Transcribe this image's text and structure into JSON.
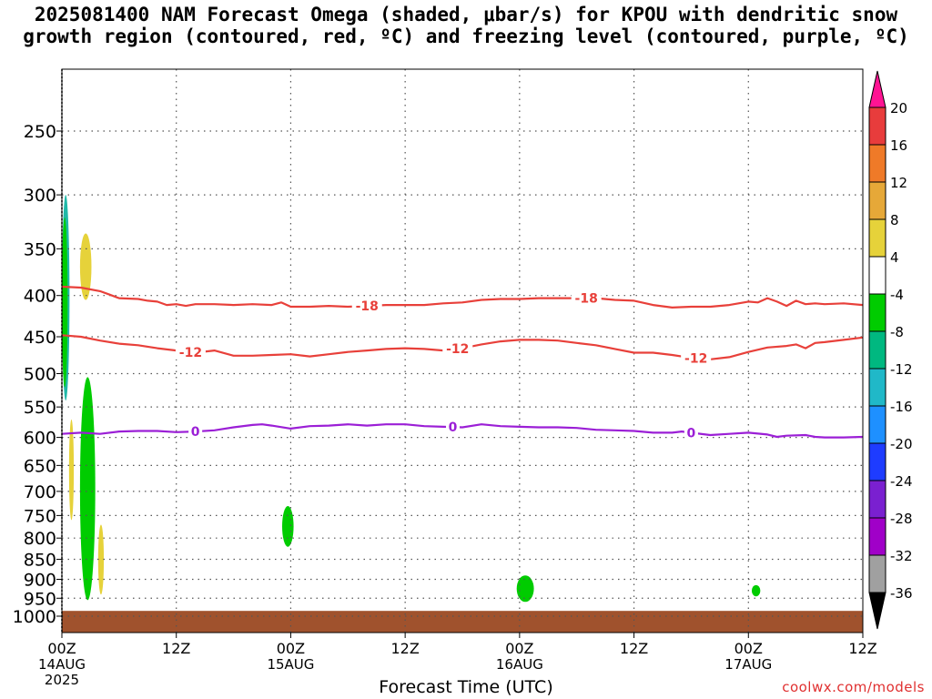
{
  "title": {
    "line1": "2025081400 NAM Forecast Omega (shaded, μbar/s) for KPOU with dendritic snow",
    "line2": "growth region (contoured, red, ºC) and freezing level (contoured, purple, ºC)"
  },
  "credit": "coolwx.com/models",
  "colors": {
    "red_contour": "#e8403a",
    "purple_contour": "#9b1fd6",
    "terrain": "#a0522d",
    "green": "#00cc00",
    "yellow": "#e6d23a",
    "teal": "#20b8a8"
  },
  "chart_data": {
    "type": "heatmap",
    "xlabel": "Forecast Time (UTC)",
    "ylabel": "",
    "x_range_hours": [
      0,
      84
    ],
    "y_scale": "log-pressure",
    "y_range_hPa": [
      200,
      1050
    ],
    "grid": true,
    "y_ticks": [
      250,
      300,
      350,
      400,
      450,
      500,
      550,
      600,
      650,
      700,
      750,
      800,
      850,
      900,
      950,
      1000
    ],
    "x_ticks": [
      {
        "hour": 0,
        "labels": [
          "00Z",
          "14AUG",
          "2025"
        ]
      },
      {
        "hour": 12,
        "labels": [
          "12Z"
        ]
      },
      {
        "hour": 24,
        "labels": [
          "00Z",
          "15AUG"
        ]
      },
      {
        "hour": 36,
        "labels": [
          "12Z"
        ]
      },
      {
        "hour": 48,
        "labels": [
          "00Z",
          "16AUG"
        ]
      },
      {
        "hour": 60,
        "labels": [
          "12Z"
        ]
      },
      {
        "hour": 72,
        "labels": [
          "00Z",
          "17AUG"
        ]
      },
      {
        "hour": 84,
        "labels": [
          "12Z"
        ]
      }
    ],
    "colorbar": {
      "levels": [
        20,
        16,
        12,
        8,
        4,
        -4,
        -8,
        -12,
        -16,
        -20,
        -24,
        -28,
        -32,
        -36
      ],
      "colors": [
        "#ff1493",
        "#e83c3c",
        "#ef7a28",
        "#e6a838",
        "#e6d23a",
        "#ffffff",
        "#00cc00",
        "#00b880",
        "#20b8c8",
        "#1e90ff",
        "#1e3cff",
        "#7a20d0",
        "#a000c8",
        "#a0a0a0",
        "#000000"
      ]
    },
    "contours": [
      {
        "label": "-18",
        "color": "#e8403a",
        "points": [
          [
            0,
            390
          ],
          [
            2,
            391
          ],
          [
            4,
            395
          ],
          [
            5,
            399
          ],
          [
            6,
            403
          ],
          [
            8,
            404
          ],
          [
            9,
            406
          ],
          [
            10,
            407
          ],
          [
            11,
            411
          ],
          [
            12,
            410
          ],
          [
            13,
            412
          ],
          [
            14,
            410
          ],
          [
            16,
            410
          ],
          [
            18,
            411
          ],
          [
            20,
            410
          ],
          [
            22,
            411
          ],
          [
            23,
            408
          ],
          [
            24,
            413
          ],
          [
            26,
            413
          ],
          [
            28,
            412
          ],
          [
            30,
            413
          ],
          [
            32,
            412
          ],
          [
            34,
            411
          ],
          [
            36,
            411
          ],
          [
            38,
            411
          ],
          [
            40,
            409
          ],
          [
            42,
            408
          ],
          [
            44,
            405
          ],
          [
            46,
            404
          ],
          [
            48,
            404
          ],
          [
            50,
            403
          ],
          [
            52,
            403
          ],
          [
            54,
            403
          ],
          [
            56,
            403
          ],
          [
            58,
            405
          ],
          [
            60,
            406
          ],
          [
            62,
            411
          ],
          [
            64,
            414
          ],
          [
            66,
            413
          ],
          [
            68,
            413
          ],
          [
            70,
            411
          ],
          [
            72,
            407
          ],
          [
            73,
            408
          ],
          [
            74,
            403
          ],
          [
            75,
            407
          ],
          [
            76,
            412
          ],
          [
            77,
            406
          ],
          [
            78,
            410
          ],
          [
            79,
            409
          ],
          [
            80,
            410
          ],
          [
            82,
            409
          ],
          [
            84,
            411
          ]
        ],
        "label_positions": [
          32,
          55
        ]
      },
      {
        "label": "-12",
        "color": "#e8403a",
        "points": [
          [
            0,
            448
          ],
          [
            2,
            450
          ],
          [
            4,
            455
          ],
          [
            6,
            459
          ],
          [
            8,
            461
          ],
          [
            10,
            465
          ],
          [
            12,
            468
          ],
          [
            14,
            471
          ],
          [
            16,
            468
          ],
          [
            18,
            475
          ],
          [
            20,
            475
          ],
          [
            22,
            474
          ],
          [
            24,
            473
          ],
          [
            26,
            476
          ],
          [
            28,
            473
          ],
          [
            30,
            470
          ],
          [
            32,
            468
          ],
          [
            34,
            466
          ],
          [
            36,
            465
          ],
          [
            38,
            466
          ],
          [
            40,
            468
          ],
          [
            42,
            465
          ],
          [
            44,
            460
          ],
          [
            46,
            456
          ],
          [
            48,
            454
          ],
          [
            50,
            454
          ],
          [
            52,
            455
          ],
          [
            54,
            458
          ],
          [
            56,
            461
          ],
          [
            58,
            466
          ],
          [
            60,
            471
          ],
          [
            62,
            471
          ],
          [
            64,
            474
          ],
          [
            66,
            478
          ],
          [
            68,
            480
          ],
          [
            70,
            477
          ],
          [
            72,
            470
          ],
          [
            74,
            464
          ],
          [
            76,
            462
          ],
          [
            77,
            460
          ],
          [
            78,
            465
          ],
          [
            79,
            458
          ],
          [
            80,
            457
          ],
          [
            82,
            454
          ],
          [
            84,
            451
          ]
        ],
        "label_positions": [
          13.5,
          41.5,
          66.5
        ]
      },
      {
        "label": "0",
        "color": "#9b1fd6",
        "points": [
          [
            0,
            594
          ],
          [
            2,
            592
          ],
          [
            4,
            594
          ],
          [
            6,
            590
          ],
          [
            8,
            589
          ],
          [
            10,
            589
          ],
          [
            12,
            591
          ],
          [
            14,
            590
          ],
          [
            16,
            588
          ],
          [
            18,
            583
          ],
          [
            20,
            579
          ],
          [
            21,
            578
          ],
          [
            22,
            580
          ],
          [
            24,
            585
          ],
          [
            26,
            581
          ],
          [
            28,
            580
          ],
          [
            30,
            578
          ],
          [
            32,
            580
          ],
          [
            34,
            578
          ],
          [
            36,
            578
          ],
          [
            38,
            581
          ],
          [
            40,
            582
          ],
          [
            42,
            583
          ],
          [
            44,
            578
          ],
          [
            46,
            581
          ],
          [
            48,
            582
          ],
          [
            50,
            583
          ],
          [
            52,
            583
          ],
          [
            54,
            584
          ],
          [
            56,
            587
          ],
          [
            58,
            588
          ],
          [
            60,
            589
          ],
          [
            62,
            592
          ],
          [
            64,
            592
          ],
          [
            65,
            590
          ],
          [
            66,
            592
          ],
          [
            68,
            596
          ],
          [
            70,
            594
          ],
          [
            72,
            592
          ],
          [
            74,
            595
          ],
          [
            75,
            599
          ],
          [
            76,
            597
          ],
          [
            78,
            596
          ],
          [
            79,
            599
          ],
          [
            80,
            600
          ],
          [
            82,
            600
          ],
          [
            84,
            599
          ]
        ],
        "label_positions": [
          14,
          41,
          66
        ]
      }
    ],
    "shaded_regions": [
      {
        "color": "#20b8a8",
        "hour_center": 0.4,
        "hour_halfwidth": 0.4,
        "p_top": 300,
        "p_bottom": 540
      },
      {
        "color": "#00cc00",
        "hour_center": 0.3,
        "hour_halfwidth": 0.3,
        "p_top": 320,
        "p_bottom": 520
      },
      {
        "color": "#e6d23a",
        "hour_center": 2.5,
        "hour_halfwidth": 0.6,
        "p_top": 335,
        "p_bottom": 405
      },
      {
        "color": "#e6d23a",
        "hour_center": 1.0,
        "hour_halfwidth": 0.25,
        "p_top": 570,
        "p_bottom": 760
      },
      {
        "color": "#00cc00",
        "hour_center": 2.7,
        "hour_halfwidth": 0.8,
        "p_top": 505,
        "p_bottom": 955
      },
      {
        "color": "#e6d23a",
        "hour_center": 4.1,
        "hour_halfwidth": 0.3,
        "p_top": 770,
        "p_bottom": 940
      },
      {
        "color": "#00cc00",
        "hour_center": 23.7,
        "hour_halfwidth": 0.6,
        "p_top": 730,
        "p_bottom": 820
      },
      {
        "color": "#00cc00",
        "hour_center": 48.6,
        "hour_halfwidth": 0.9,
        "p_top": 890,
        "p_bottom": 960
      },
      {
        "color": "#00cc00",
        "hour_center": 72.8,
        "hour_halfwidth": 0.45,
        "p_top": 915,
        "p_bottom": 945
      }
    ],
    "terrain": {
      "color": "#a0522d",
      "p_top": 985
    }
  }
}
